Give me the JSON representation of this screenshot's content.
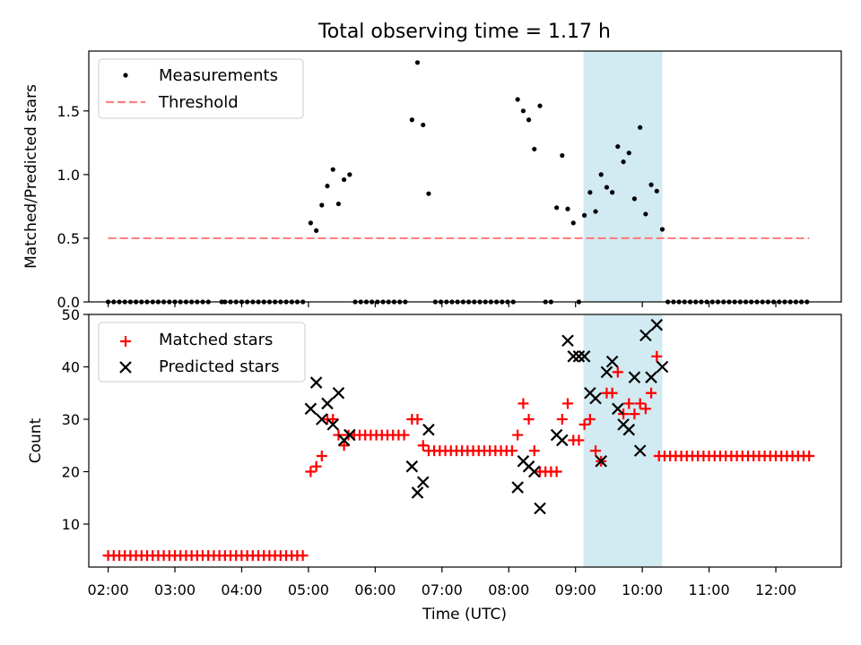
{
  "title": "Total observing time = 1.17 h",
  "colors": {
    "matched": "#ff0000",
    "predicted": "#000000",
    "threshold": "#ff7f7f",
    "highlight": "#add8e6"
  },
  "chart_data": [
    {
      "type": "scatter",
      "ylabel": "Matched/Predicted stars",
      "xlim": [
        1.71,
        12.98
      ],
      "ylim": [
        0,
        1.97
      ],
      "yticks": [
        "0.0",
        "0.5",
        "1.0",
        "1.5"
      ],
      "highlight_span": [
        9.12,
        10.3
      ],
      "legend": {
        "position": "top-left",
        "entries": [
          "Measurements",
          "Threshold"
        ]
      },
      "threshold": {
        "name": "Threshold",
        "x": [
          2.0,
          12.5
        ],
        "y": 0.5
      },
      "series": [
        {
          "name": "Measurements",
          "points": [
            [
              2.0,
              0
            ],
            [
              2.083,
              0
            ],
            [
              2.167,
              0
            ],
            [
              2.25,
              0
            ],
            [
              2.333,
              0
            ],
            [
              2.417,
              0
            ],
            [
              2.5,
              0
            ],
            [
              2.583,
              0
            ],
            [
              2.667,
              0
            ],
            [
              2.75,
              0
            ],
            [
              2.833,
              0
            ],
            [
              2.917,
              0
            ],
            [
              3.0,
              0
            ],
            [
              3.083,
              0
            ],
            [
              3.167,
              0
            ],
            [
              3.25,
              0
            ],
            [
              3.333,
              0
            ],
            [
              3.417,
              0
            ],
            [
              3.5,
              0
            ],
            [
              3.7,
              0
            ],
            [
              3.75,
              0
            ],
            [
              3.833,
              0
            ],
            [
              3.917,
              0
            ],
            [
              4.0,
              0
            ],
            [
              4.083,
              0
            ],
            [
              4.167,
              0
            ],
            [
              4.25,
              0
            ],
            [
              4.333,
              0
            ],
            [
              4.417,
              0
            ],
            [
              4.5,
              0
            ],
            [
              4.583,
              0
            ],
            [
              4.667,
              0
            ],
            [
              4.75,
              0
            ],
            [
              4.833,
              0
            ],
            [
              4.917,
              0
            ],
            [
              5.033,
              0.62
            ],
            [
              5.117,
              0.56
            ],
            [
              5.2,
              0.76
            ],
            [
              5.283,
              0.91
            ],
            [
              5.367,
              1.04
            ],
            [
              5.45,
              0.77
            ],
            [
              5.533,
              0.96
            ],
            [
              5.617,
              1.0
            ],
            [
              5.7,
              0
            ],
            [
              5.783,
              0
            ],
            [
              5.867,
              0
            ],
            [
              5.95,
              0
            ],
            [
              6.033,
              0
            ],
            [
              6.117,
              0
            ],
            [
              6.2,
              0
            ],
            [
              6.283,
              0
            ],
            [
              6.367,
              0
            ],
            [
              6.45,
              0
            ],
            [
              6.55,
              1.43
            ],
            [
              6.633,
              1.88
            ],
            [
              6.717,
              1.39
            ],
            [
              6.8,
              0.85
            ],
            [
              6.9,
              0
            ],
            [
              6.983,
              0
            ],
            [
              7.067,
              0
            ],
            [
              7.15,
              0
            ],
            [
              7.233,
              0
            ],
            [
              7.317,
              0
            ],
            [
              7.4,
              0
            ],
            [
              7.483,
              0
            ],
            [
              7.567,
              0
            ],
            [
              7.65,
              0
            ],
            [
              7.733,
              0
            ],
            [
              7.817,
              0
            ],
            [
              7.9,
              0
            ],
            [
              7.983,
              0
            ],
            [
              8.067,
              0
            ],
            [
              8.133,
              1.59
            ],
            [
              8.217,
              1.5
            ],
            [
              8.3,
              1.43
            ],
            [
              8.383,
              1.2
            ],
            [
              8.467,
              1.54
            ],
            [
              8.55,
              0
            ],
            [
              8.633,
              0
            ],
            [
              8.717,
              0.74
            ],
            [
              8.8,
              1.15
            ],
            [
              8.883,
              0.73
            ],
            [
              8.967,
              0.62
            ],
            [
              9.05,
              0
            ],
            [
              9.133,
              0.68
            ],
            [
              9.217,
              0.86
            ],
            [
              9.3,
              0.71
            ],
            [
              9.383,
              1.0
            ],
            [
              9.467,
              0.9
            ],
            [
              9.55,
              0.86
            ],
            [
              9.633,
              1.22
            ],
            [
              9.717,
              1.1
            ],
            [
              9.8,
              1.17
            ],
            [
              9.883,
              0.81
            ],
            [
              9.967,
              1.37
            ],
            [
              10.05,
              0.69
            ],
            [
              10.133,
              0.92
            ],
            [
              10.217,
              0.87
            ],
            [
              10.3,
              0.57
            ],
            [
              10.383,
              0
            ],
            [
              10.467,
              0
            ],
            [
              10.55,
              0
            ],
            [
              10.633,
              0
            ],
            [
              10.717,
              0
            ],
            [
              10.8,
              0
            ],
            [
              10.883,
              0
            ],
            [
              10.967,
              0
            ],
            [
              11.05,
              0
            ],
            [
              11.133,
              0
            ],
            [
              11.217,
              0
            ],
            [
              11.3,
              0
            ],
            [
              11.383,
              0
            ],
            [
              11.467,
              0
            ],
            [
              11.55,
              0
            ],
            [
              11.633,
              0
            ],
            [
              11.717,
              0
            ],
            [
              11.8,
              0
            ],
            [
              11.883,
              0
            ],
            [
              11.967,
              0
            ],
            [
              12.05,
              0
            ],
            [
              12.133,
              0
            ],
            [
              12.217,
              0
            ],
            [
              12.3,
              0
            ],
            [
              12.383,
              0
            ],
            [
              12.467,
              0
            ]
          ]
        }
      ]
    },
    {
      "type": "scatter",
      "xlabel": "Time (UTC)",
      "ylabel": "Count",
      "xlim": [
        1.71,
        12.98
      ],
      "ylim": [
        1.8,
        50
      ],
      "xticks": [
        {
          "x": 2,
          "label": "02:00"
        },
        {
          "x": 3,
          "label": "03:00"
        },
        {
          "x": 4,
          "label": "04:00"
        },
        {
          "x": 5,
          "label": "05:00"
        },
        {
          "x": 6,
          "label": "06:00"
        },
        {
          "x": 7,
          "label": "07:00"
        },
        {
          "x": 8,
          "label": "08:00"
        },
        {
          "x": 9,
          "label": "09:00"
        },
        {
          "x": 10,
          "label": "10:00"
        },
        {
          "x": 11,
          "label": "11:00"
        },
        {
          "x": 12,
          "label": "12:00"
        }
      ],
      "yticks": [
        "10",
        "20",
        "30",
        "40",
        "50"
      ],
      "highlight_span": [
        9.12,
        10.3
      ],
      "legend": {
        "position": "top-left",
        "entries": [
          "Matched stars",
          "Predicted stars"
        ]
      },
      "matched_constant_runs": [
        {
          "x_start": 2.0,
          "x_end": 4.917,
          "step": 0.0833,
          "y": 4
        },
        {
          "x_start": 5.6,
          "x_end": 6.467,
          "step": 0.0833,
          "y": 27
        },
        {
          "x_start": 6.8,
          "x_end": 8.05,
          "step": 0.0833,
          "y": 24
        },
        {
          "x_start": 10.25,
          "x_end": 12.5,
          "step": 0.0833,
          "y": 23
        }
      ],
      "series": [
        {
          "name": "Matched stars",
          "points": [
            [
              5.033,
              20
            ],
            [
              5.117,
              21
            ],
            [
              5.2,
              23
            ],
            [
              5.283,
              30
            ],
            [
              5.367,
              30
            ],
            [
              5.45,
              27
            ],
            [
              5.533,
              25
            ],
            [
              6.55,
              30
            ],
            [
              6.633,
              30
            ],
            [
              6.717,
              25
            ],
            [
              8.133,
              27
            ],
            [
              8.217,
              33
            ],
            [
              8.3,
              30
            ],
            [
              8.383,
              24
            ],
            [
              8.467,
              20
            ],
            [
              8.55,
              20
            ],
            [
              8.633,
              20
            ],
            [
              8.717,
              20
            ],
            [
              8.8,
              30
            ],
            [
              8.883,
              33
            ],
            [
              8.967,
              26
            ],
            [
              9.05,
              26
            ],
            [
              9.133,
              29
            ],
            [
              9.217,
              30
            ],
            [
              9.3,
              24
            ],
            [
              9.383,
              22
            ],
            [
              9.467,
              35
            ],
            [
              9.55,
              35
            ],
            [
              9.633,
              39
            ],
            [
              9.717,
              31
            ],
            [
              9.8,
              33
            ],
            [
              9.883,
              31
            ],
            [
              9.967,
              33
            ],
            [
              10.05,
              32
            ],
            [
              10.133,
              35
            ],
            [
              10.217,
              42
            ]
          ]
        },
        {
          "name": "Predicted stars",
          "points": [
            [
              5.033,
              32
            ],
            [
              5.117,
              37
            ],
            [
              5.2,
              30
            ],
            [
              5.283,
              33
            ],
            [
              5.367,
              29
            ],
            [
              5.45,
              35
            ],
            [
              5.533,
              26
            ],
            [
              5.617,
              27
            ],
            [
              6.55,
              21
            ],
            [
              6.633,
              16
            ],
            [
              6.717,
              18
            ],
            [
              6.8,
              28
            ],
            [
              8.133,
              17
            ],
            [
              8.217,
              22
            ],
            [
              8.3,
              21
            ],
            [
              8.383,
              20
            ],
            [
              8.467,
              13
            ],
            [
              8.717,
              27
            ],
            [
              8.8,
              26
            ],
            [
              8.883,
              45
            ],
            [
              8.967,
              42
            ],
            [
              9.05,
              42
            ],
            [
              9.133,
              42
            ],
            [
              9.217,
              35
            ],
            [
              9.3,
              34
            ],
            [
              9.383,
              22
            ],
            [
              9.467,
              39
            ],
            [
              9.55,
              41
            ],
            [
              9.633,
              32
            ],
            [
              9.717,
              29
            ],
            [
              9.8,
              28
            ],
            [
              9.883,
              38
            ],
            [
              9.967,
              24
            ],
            [
              10.05,
              46
            ],
            [
              10.133,
              38
            ],
            [
              10.217,
              48
            ],
            [
              10.3,
              40
            ]
          ]
        }
      ]
    }
  ]
}
